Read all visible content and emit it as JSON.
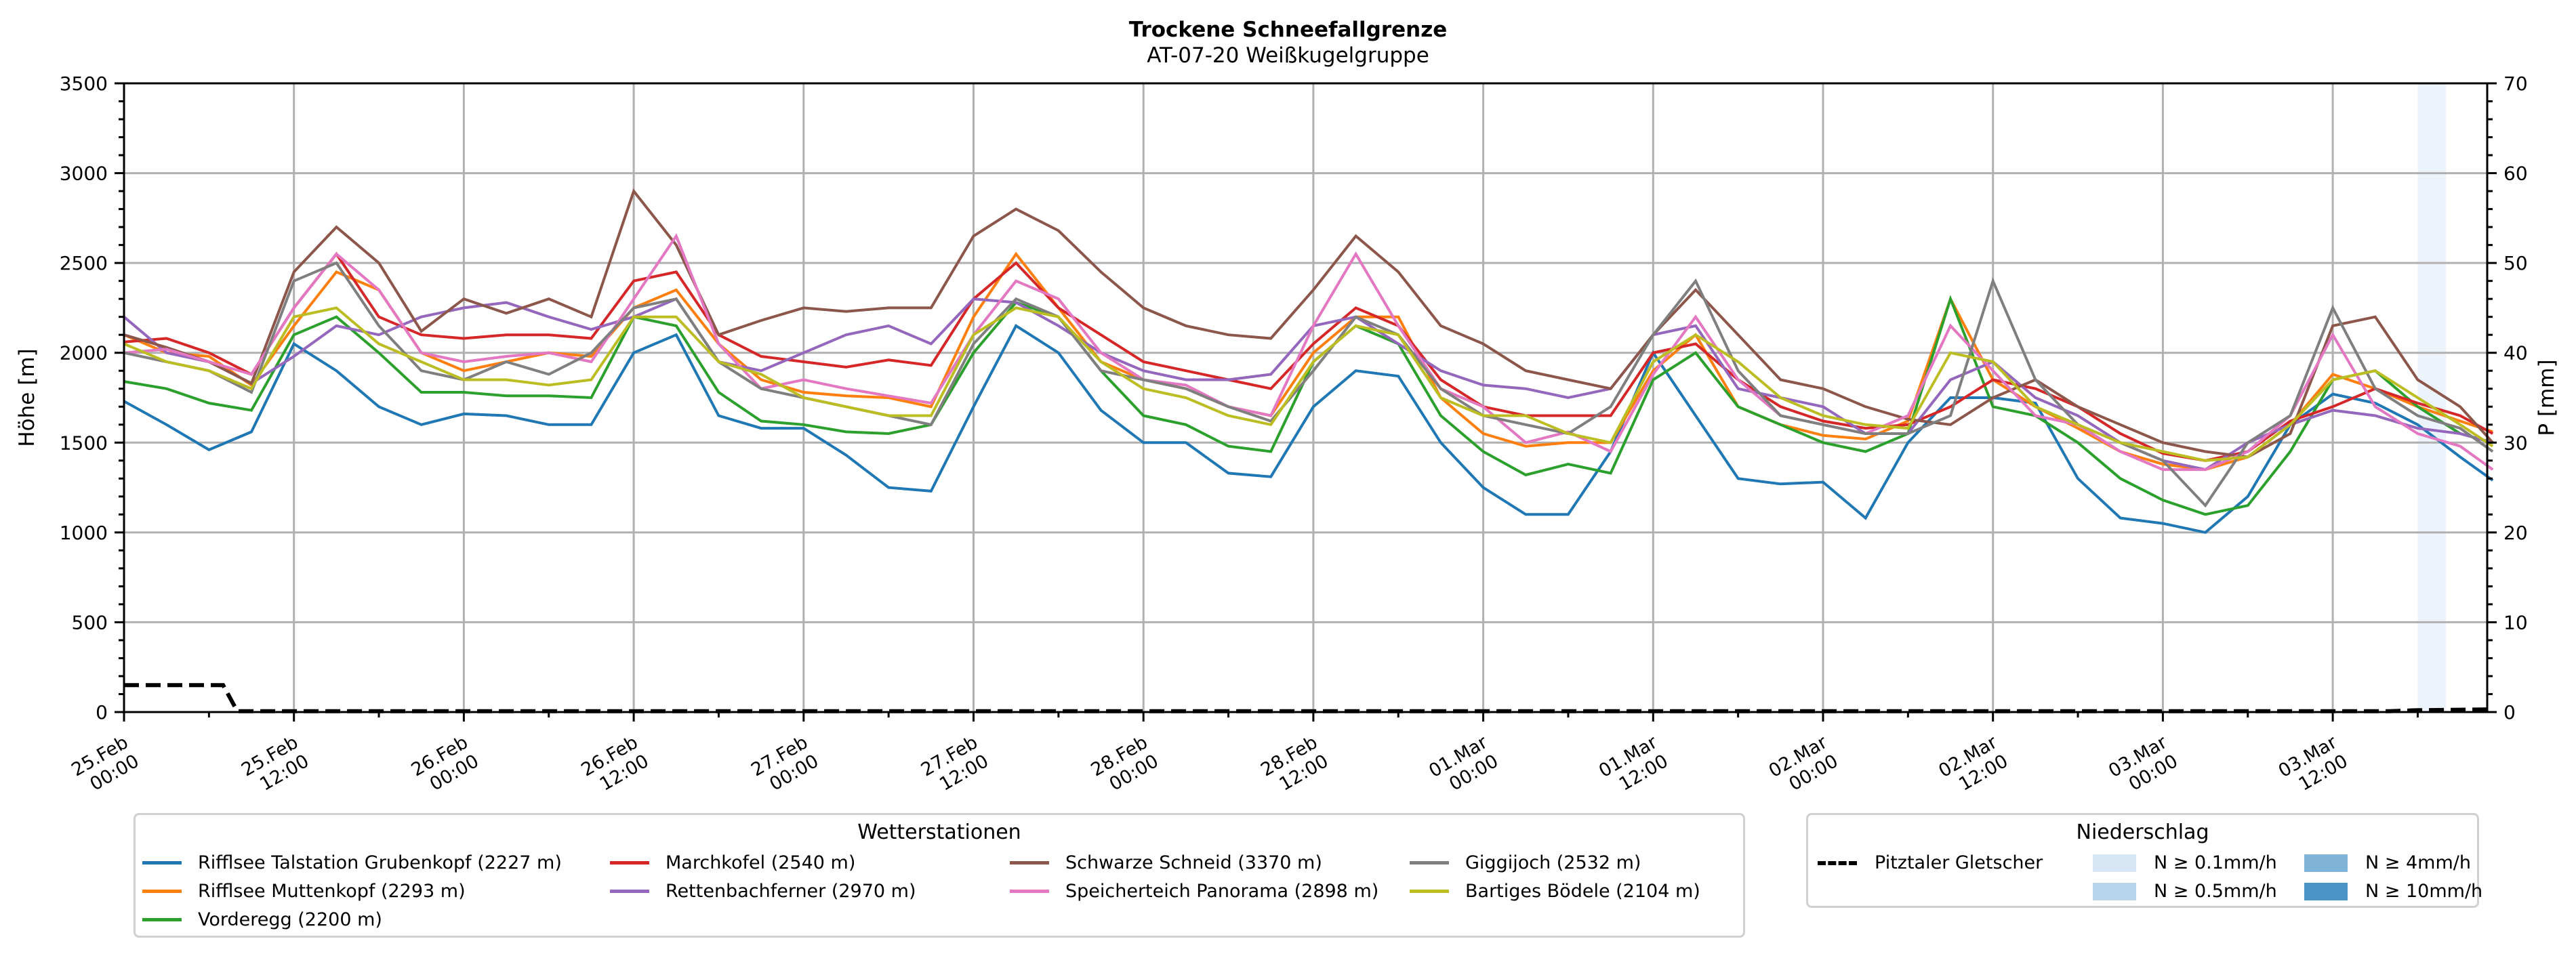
{
  "chart_data": {
    "type": "line",
    "title": "Trockene Schneefallgrenze",
    "subtitle": "AT-07-20 Weißkugelgruppe",
    "ylabel": "Höhe [m]",
    "ylabel_right": "P [mm]",
    "ylim": [
      0,
      3500
    ],
    "ylim_right": [
      0,
      70
    ],
    "yticks": [
      "0",
      "500",
      "1000",
      "1500",
      "2000",
      "2500",
      "3000",
      "3500"
    ],
    "yticks_right": [
      "0",
      "10",
      "20",
      "30",
      "40",
      "50",
      "60",
      "70"
    ],
    "x_unit": "hours since 25.Feb 00:00",
    "x_step_hours": 3,
    "xlim_hours": [
      0,
      168
    ],
    "xticks": [
      {
        "hour": 0,
        "label": "25.Feb\n00:00"
      },
      {
        "hour": 12,
        "label": "25.Feb\n12:00"
      },
      {
        "hour": 24,
        "label": "26.Feb\n00:00"
      },
      {
        "hour": 36,
        "label": "26.Feb\n12:00"
      },
      {
        "hour": 48,
        "label": "27.Feb\n00:00"
      },
      {
        "hour": 60,
        "label": "27.Feb\n12:00"
      },
      {
        "hour": 72,
        "label": "28.Feb\n00:00"
      },
      {
        "hour": 84,
        "label": "28.Feb\n12:00"
      },
      {
        "hour": 96,
        "label": "01.Mar\n00:00"
      },
      {
        "hour": 108,
        "label": "01.Mar\n12:00"
      },
      {
        "hour": 120,
        "label": "02.Mar\n00:00"
      },
      {
        "hour": 132,
        "label": "02.Mar\n12:00"
      },
      {
        "hour": 144,
        "label": "03.Mar\n00:00"
      },
      {
        "hour": 156,
        "label": "03.Mar\n12:00"
      }
    ],
    "grid": true,
    "series": [
      {
        "name": "Rifflsee Talstation Grubenkopf (2227 m)",
        "color": "#1f77b4",
        "values": [
          1730,
          1600,
          1460,
          1560,
          2050,
          1900,
          1700,
          1600,
          1660,
          1650,
          1600,
          1600,
          2000,
          2100,
          1650,
          1580,
          1580,
          1430,
          1250,
          1230,
          1700,
          2150,
          2000,
          1680,
          1500,
          1500,
          1330,
          1310,
          1700,
          1900,
          1870,
          1500,
          1250,
          1100,
          1100,
          1450,
          2000,
          1650,
          1300,
          1270,
          1280,
          1080,
          1500,
          1750,
          1750,
          1720,
          1300,
          1080,
          1050,
          1000,
          1200,
          1600,
          1770,
          1720,
          1600,
          1420,
          1290
        ]
      },
      {
        "name": "Rifflsee Muttenkopf (2293 m)",
        "color": "#ff7f0e",
        "values": [
          2100,
          2000,
          1980,
          1820,
          2150,
          2450,
          2350,
          2000,
          1900,
          1950,
          2000,
          1980,
          2250,
          2350,
          2050,
          1850,
          1780,
          1760,
          1750,
          1700,
          2200,
          2550,
          2250,
          1950,
          1850,
          1800,
          1700,
          1650,
          2000,
          2200,
          2200,
          1750,
          1550,
          1480,
          1500,
          1500,
          1900,
          2100,
          1700,
          1600,
          1540,
          1520,
          1620,
          2300,
          1850,
          1700,
          1580,
          1450,
          1380,
          1350,
          1420,
          1600,
          1880,
          1800,
          1700,
          1620,
          1560
        ]
      },
      {
        "name": "Vorderegg (2200 m)",
        "color": "#2ca02c",
        "values": [
          1840,
          1800,
          1720,
          1680,
          2100,
          2200,
          2000,
          1780,
          1780,
          1760,
          1760,
          1750,
          2200,
          2150,
          1780,
          1620,
          1600,
          1560,
          1550,
          1600,
          2000,
          2280,
          2200,
          1900,
          1650,
          1600,
          1480,
          1450,
          1950,
          2150,
          2050,
          1650,
          1450,
          1320,
          1380,
          1330,
          1850,
          2000,
          1700,
          1600,
          1500,
          1450,
          1550,
          2300,
          1700,
          1650,
          1500,
          1300,
          1180,
          1100,
          1150,
          1450,
          1850,
          1900,
          1700,
          1550,
          1500
        ]
      },
      {
        "name": "Marchkofel (2540 m)",
        "color": "#d62728",
        "values": [
          2060,
          2080,
          2000,
          1880,
          2250,
          2550,
          2200,
          2100,
          2080,
          2100,
          2100,
          2080,
          2400,
          2450,
          2100,
          1980,
          1950,
          1920,
          1960,
          1930,
          2300,
          2500,
          2250,
          2100,
          1950,
          1900,
          1850,
          1800,
          2050,
          2250,
          2150,
          1850,
          1700,
          1650,
          1650,
          1650,
          2000,
          2050,
          1850,
          1700,
          1620,
          1580,
          1600,
          1700,
          1850,
          1800,
          1700,
          1550,
          1440,
          1400,
          1450,
          1620,
          1700,
          1800,
          1720,
          1650,
          1550
        ]
      },
      {
        "name": "Rettenbachferner (2970 m)",
        "color": "#9467bd",
        "values": [
          2200,
          2000,
          1950,
          1830,
          1980,
          2150,
          2100,
          2200,
          2250,
          2280,
          2200,
          2130,
          2200,
          2300,
          1950,
          1900,
          2000,
          2100,
          2150,
          2050,
          2300,
          2280,
          2150,
          2000,
          1900,
          1850,
          1850,
          1880,
          2150,
          2200,
          2050,
          1900,
          1820,
          1800,
          1750,
          1800,
          2100,
          2150,
          1800,
          1750,
          1700,
          1550,
          1550,
          1850,
          1950,
          1750,
          1650,
          1500,
          1400,
          1350,
          1500,
          1600,
          1680,
          1650,
          1580,
          1550,
          1500
        ]
      },
      {
        "name": "Schwarze Schneid (3370 m)",
        "color": "#8c564b",
        "values": [
          2100,
          2030,
          1950,
          1830,
          2450,
          2700,
          2500,
          2120,
          2300,
          2220,
          2300,
          2200,
          2900,
          2600,
          2100,
          2180,
          2250,
          2230,
          2250,
          2250,
          2650,
          2800,
          2680,
          2450,
          2250,
          2150,
          2100,
          2080,
          2350,
          2650,
          2450,
          2150,
          2050,
          1900,
          1850,
          1800,
          2100,
          2350,
          2100,
          1850,
          1800,
          1700,
          1630,
          1600,
          1750,
          1850,
          1700,
          1600,
          1500,
          1450,
          1420,
          1550,
          2150,
          2200,
          1850,
          1700,
          1500
        ]
      },
      {
        "name": "Speicherteich Panorama (2898 m)",
        "color": "#e377c2",
        "values": [
          2000,
          2020,
          1950,
          1880,
          2250,
          2550,
          2350,
          2000,
          1950,
          1980,
          2000,
          1950,
          2300,
          2650,
          2050,
          1800,
          1850,
          1800,
          1760,
          1720,
          2100,
          2400,
          2300,
          2000,
          1850,
          1820,
          1700,
          1650,
          2150,
          2550,
          2150,
          1800,
          1700,
          1500,
          1560,
          1450,
          1880,
          2200,
          1850,
          1650,
          1600,
          1550,
          1650,
          2150,
          1900,
          1650,
          1600,
          1450,
          1350,
          1350,
          1450,
          1650,
          2100,
          1700,
          1550,
          1480,
          1350
        ]
      },
      {
        "name": "Giggijoch (2532 m)",
        "color": "#7f7f7f",
        "values": [
          2000,
          1950,
          1900,
          1780,
          2400,
          2500,
          2150,
          1900,
          1850,
          1950,
          1880,
          2000,
          2250,
          2300,
          1950,
          1800,
          1750,
          1700,
          1650,
          1600,
          2050,
          2300,
          2200,
          1900,
          1850,
          1800,
          1700,
          1620,
          1900,
          2200,
          2100,
          1800,
          1650,
          1600,
          1550,
          1700,
          2100,
          2400,
          1900,
          1650,
          1600,
          1550,
          1550,
          1650,
          2400,
          1850,
          1600,
          1500,
          1400,
          1150,
          1500,
          1650,
          2250,
          1800,
          1650,
          1580,
          1450
        ]
      },
      {
        "name": "Bartiges Bödele (2104 m)",
        "color": "#bcbd22",
        "values": [
          2050,
          1950,
          1900,
          1800,
          2200,
          2250,
          2050,
          1950,
          1850,
          1850,
          1820,
          1850,
          2200,
          2200,
          1950,
          1880,
          1750,
          1700,
          1650,
          1650,
          2100,
          2250,
          2200,
          1950,
          1800,
          1750,
          1650,
          1600,
          1950,
          2150,
          2100,
          1750,
          1650,
          1650,
          1550,
          1500,
          1950,
          2100,
          1950,
          1750,
          1650,
          1600,
          1580,
          2000,
          1950,
          1700,
          1600,
          1500,
          1450,
          1400,
          1420,
          1600,
          1850,
          1900,
          1750,
          1600,
          1480
        ]
      }
    ],
    "precipitation": {
      "name": "Pitztaler Gletscher",
      "style": "dashed",
      "color": "#000000",
      "points": [
        [
          0,
          3.0
        ],
        [
          7,
          3.0
        ],
        [
          8,
          0.1
        ],
        [
          160,
          0.1
        ],
        [
          162,
          0.2
        ],
        [
          168,
          0.3
        ]
      ]
    },
    "precip_bands": [
      {
        "start_hour": 162,
        "end_hour": 164,
        "level": "N ≥ 0.1mm/h",
        "color": "#edf3fb"
      }
    ],
    "legend_stations": {
      "title": "Wetterstationen",
      "placement": "bottom-left"
    },
    "legend_precip": {
      "title": "Niederschlag",
      "placement": "bottom-right",
      "line_label": "Pitztaler Gletscher",
      "levels": [
        {
          "label": "N ≥ 0.1mm/h",
          "color": "#d6e6f4"
        },
        {
          "label": "N ≥ 0.5mm/h",
          "color": "#b8d4ea"
        },
        {
          "label": "N ≥ 4mm/h",
          "color": "#7fb4d8"
        },
        {
          "label": "N ≥ 10mm/h",
          "color": "#4a95c8"
        }
      ]
    }
  }
}
